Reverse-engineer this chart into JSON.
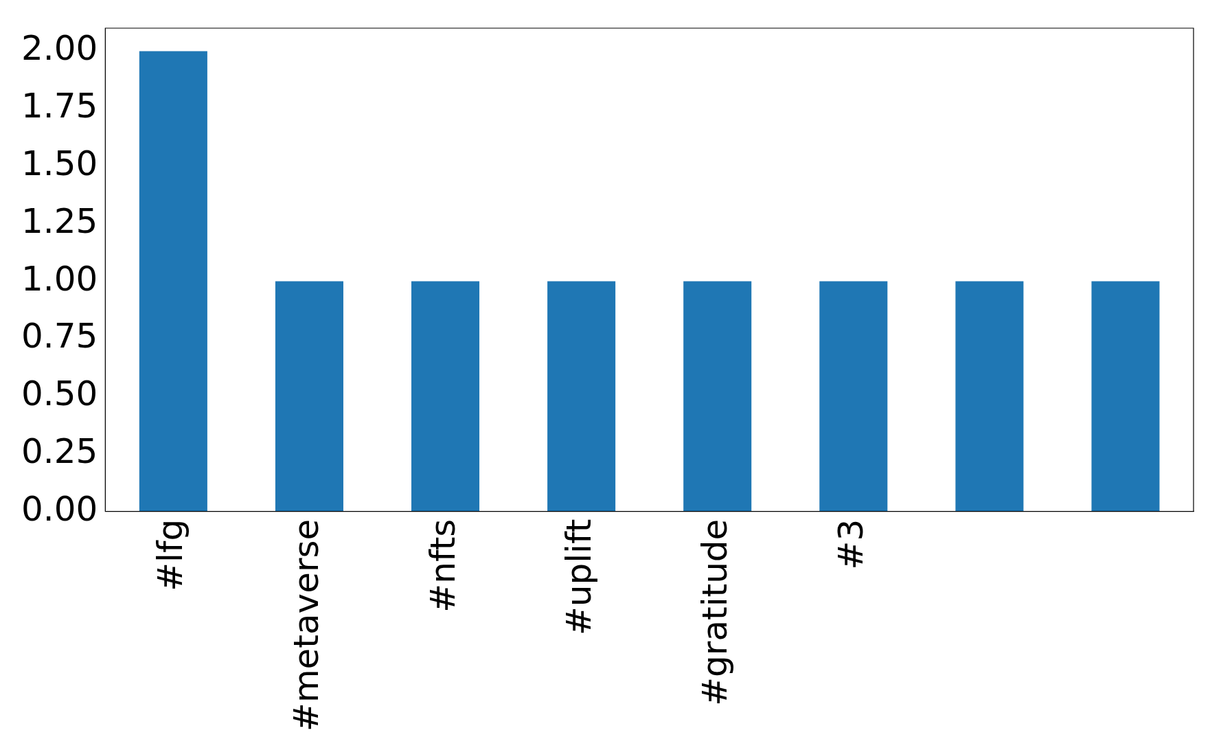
{
  "chart_data": {
    "type": "bar",
    "categories": [
      "#lfg",
      "#metaverse",
      "#nfts",
      "#uplift",
      "#gratitude",
      "#3",
      null,
      null
    ],
    "values": [
      2,
      1,
      1,
      1,
      1,
      1,
      1,
      1
    ],
    "color": "#1f77b4",
    "ylim": [
      0,
      2.1
    ],
    "yticks": [
      {
        "value": 0,
        "label": "0.00"
      },
      {
        "value": 0.25,
        "label": "0.25"
      },
      {
        "value": 0.5,
        "label": "0.50"
      },
      {
        "value": 0.75,
        "label": "0.75"
      },
      {
        "value": 1,
        "label": "1.00"
      },
      {
        "value": 1.25,
        "label": "1.25"
      },
      {
        "value": 1.5,
        "label": "1.50"
      },
      {
        "value": 1.75,
        "label": "1.75"
      },
      {
        "value": 2,
        "label": "2.00"
      }
    ],
    "grid": false,
    "legend": false
  }
}
